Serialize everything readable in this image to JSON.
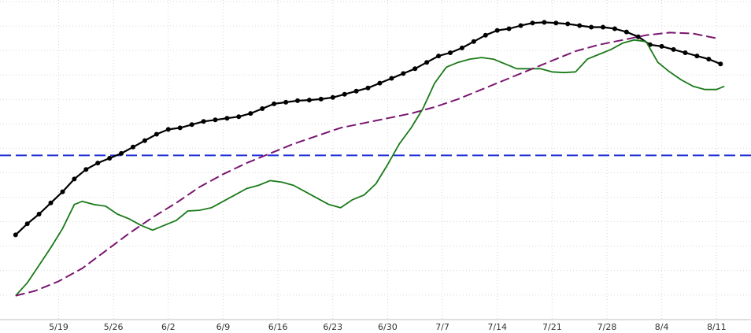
{
  "chart_data": {
    "type": "line",
    "title": "",
    "xlabel": "",
    "ylabel": "",
    "x_range": [
      "5/13",
      "8/11"
    ],
    "y_range": [
      0,
      100
    ],
    "grid": true,
    "legend": "none",
    "x_ticks": [
      {
        "date": "5/19",
        "day": 6
      },
      {
        "date": "5/26",
        "day": 13
      },
      {
        "date": "6/2",
        "day": 20
      },
      {
        "date": "6/9",
        "day": 27
      },
      {
        "date": "6/16",
        "day": 34
      },
      {
        "date": "6/23",
        "day": 41
      },
      {
        "date": "6/30",
        "day": 48
      },
      {
        "date": "7/7",
        "day": 55
      },
      {
        "date": "7/14",
        "day": 62
      },
      {
        "date": "7/21",
        "day": 69
      },
      {
        "date": "7/28",
        "day": 76
      },
      {
        "date": "8/4",
        "day": 83
      },
      {
        "date": "8/11",
        "day": 90
      }
    ],
    "reference_line": {
      "y": 51.4,
      "color": "#1f2fd6"
    },
    "series": [
      {
        "color": "#000000",
        "style": "solid-markers",
        "points": [
          [
            0.5,
            26.5
          ],
          [
            2,
            30
          ],
          [
            3.5,
            33
          ],
          [
            5,
            36.5
          ],
          [
            6.5,
            40
          ],
          [
            8,
            44
          ],
          [
            9.5,
            47
          ],
          [
            11,
            49
          ],
          [
            12.5,
            50.5
          ],
          [
            14,
            52
          ],
          [
            15.5,
            54
          ],
          [
            17,
            56
          ],
          [
            18.5,
            58
          ],
          [
            20,
            59.5
          ],
          [
            21.5,
            60
          ],
          [
            23,
            61
          ],
          [
            24.5,
            62
          ],
          [
            26,
            62.5
          ],
          [
            27.5,
            63
          ],
          [
            29,
            63.5
          ],
          [
            30.5,
            64.5
          ],
          [
            32,
            66
          ],
          [
            33.5,
            67.5
          ],
          [
            35,
            68
          ],
          [
            36.5,
            68.5
          ],
          [
            38,
            68.7
          ],
          [
            39.5,
            69
          ],
          [
            41,
            69.5
          ],
          [
            42.5,
            70.5
          ],
          [
            44,
            71.5
          ],
          [
            45.5,
            72.5
          ],
          [
            47,
            74
          ],
          [
            48.5,
            75.5
          ],
          [
            50,
            77
          ],
          [
            51.5,
            78.5
          ],
          [
            53,
            80.5
          ],
          [
            54.5,
            82.5
          ],
          [
            56,
            83.5
          ],
          [
            57.5,
            85
          ],
          [
            59,
            87
          ],
          [
            60.5,
            89
          ],
          [
            62,
            90.5
          ],
          [
            63.5,
            91
          ],
          [
            65,
            92
          ],
          [
            66.5,
            92.8
          ],
          [
            68,
            93
          ],
          [
            69.5,
            92.8
          ],
          [
            71,
            92.5
          ],
          [
            72.5,
            92
          ],
          [
            74,
            91.5
          ],
          [
            75.5,
            91.5
          ],
          [
            77,
            91
          ],
          [
            78.5,
            90
          ],
          [
            80,
            88.5
          ],
          [
            81.5,
            86
          ],
          [
            83,
            85.5
          ],
          [
            84.5,
            84.5
          ],
          [
            86,
            83.5
          ],
          [
            87.5,
            82.5
          ],
          [
            89,
            81.5
          ],
          [
            90.5,
            80
          ]
        ]
      },
      {
        "color": "#1a7a1a",
        "style": "solid",
        "points": [
          [
            0.5,
            7.5
          ],
          [
            2,
            11.5
          ],
          [
            3.5,
            17
          ],
          [
            5,
            22.5
          ],
          [
            6.5,
            28.5
          ],
          [
            8,
            36
          ],
          [
            9,
            37
          ],
          [
            10.5,
            36
          ],
          [
            12,
            35.5
          ],
          [
            13.5,
            33
          ],
          [
            15,
            31.5
          ],
          [
            16.5,
            29.5
          ],
          [
            18,
            28
          ],
          [
            19.5,
            29.5
          ],
          [
            21,
            31
          ],
          [
            22.5,
            34
          ],
          [
            24,
            34.2
          ],
          [
            25.5,
            35
          ],
          [
            27,
            37
          ],
          [
            28.5,
            39
          ],
          [
            30,
            41
          ],
          [
            31.5,
            42
          ],
          [
            33,
            43.5
          ],
          [
            34.5,
            43
          ],
          [
            36,
            42
          ],
          [
            37.5,
            40
          ],
          [
            39,
            38
          ],
          [
            40.5,
            36
          ],
          [
            42,
            35
          ],
          [
            43.5,
            37.5
          ],
          [
            45,
            39
          ],
          [
            46.5,
            42.5
          ],
          [
            48,
            48.5
          ],
          [
            49.5,
            55
          ],
          [
            51,
            60
          ],
          [
            52.5,
            66
          ],
          [
            54,
            74
          ],
          [
            55.5,
            79
          ],
          [
            57,
            80.5
          ],
          [
            58.5,
            81.5
          ],
          [
            60,
            82
          ],
          [
            61.5,
            81.5
          ],
          [
            63,
            80
          ],
          [
            64.5,
            78.5
          ],
          [
            66,
            78.5
          ],
          [
            67.5,
            78.5
          ],
          [
            69,
            77.5
          ],
          [
            70.5,
            77.3
          ],
          [
            72,
            77.5
          ],
          [
            73.5,
            81.5
          ],
          [
            75,
            83
          ],
          [
            76.5,
            84.5
          ],
          [
            78,
            86.5
          ],
          [
            79.5,
            87.5
          ],
          [
            81,
            87
          ],
          [
            82.5,
            80.5
          ],
          [
            84,
            77.5
          ],
          [
            85.5,
            75
          ],
          [
            87,
            73
          ],
          [
            88.5,
            72
          ],
          [
            90,
            72
          ],
          [
            91,
            73
          ]
        ]
      },
      {
        "color": "#7a1670",
        "style": "dashed",
        "points": [
          [
            0.5,
            7.5
          ],
          [
            3,
            9
          ],
          [
            6,
            12
          ],
          [
            9,
            16
          ],
          [
            12,
            21.5
          ],
          [
            15,
            27
          ],
          [
            18,
            32
          ],
          [
            21,
            36.5
          ],
          [
            24,
            41.5
          ],
          [
            27,
            45.5
          ],
          [
            30,
            49
          ],
          [
            33,
            52
          ],
          [
            36,
            55
          ],
          [
            39,
            57.5
          ],
          [
            42,
            60
          ],
          [
            45,
            61.5
          ],
          [
            48,
            63
          ],
          [
            51,
            64.5
          ],
          [
            54,
            66.5
          ],
          [
            57,
            69
          ],
          [
            60,
            72
          ],
          [
            63,
            75
          ],
          [
            66,
            78
          ],
          [
            69,
            81
          ],
          [
            72,
            84
          ],
          [
            75,
            86
          ],
          [
            78,
            87.5
          ],
          [
            81,
            89
          ],
          [
            84,
            89.8
          ],
          [
            87,
            89.5
          ],
          [
            90,
            88
          ]
        ]
      }
    ]
  }
}
